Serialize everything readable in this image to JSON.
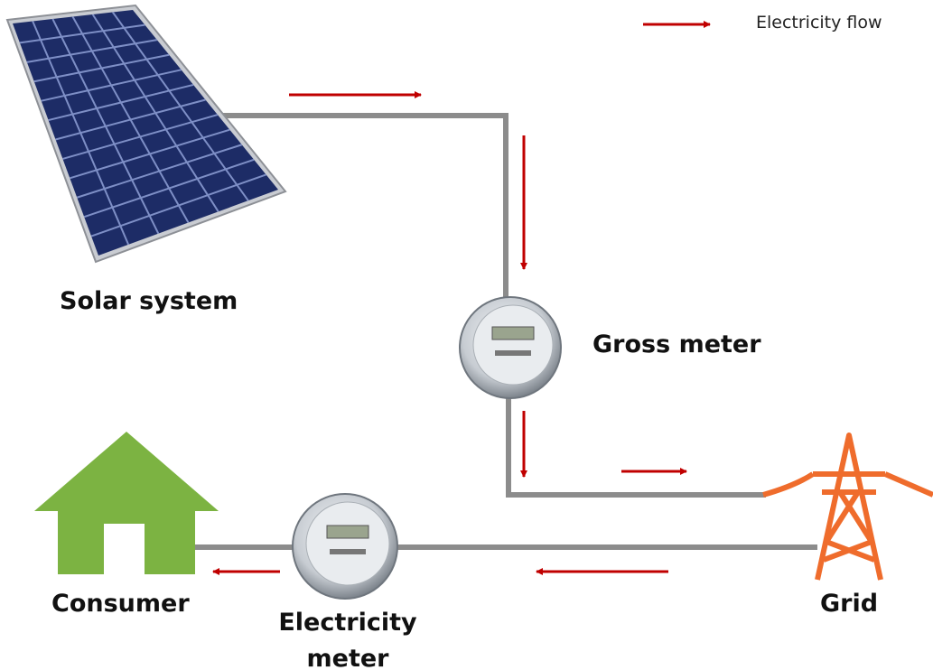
{
  "legend": {
    "label": "Electricity flow"
  },
  "nodes": [
    {
      "label": "Solar system"
    },
    {
      "label": "Gross meter"
    },
    {
      "label": "Grid"
    },
    {
      "label": "Consumer"
    },
    {
      "label": "Electricity meter"
    }
  ]
}
